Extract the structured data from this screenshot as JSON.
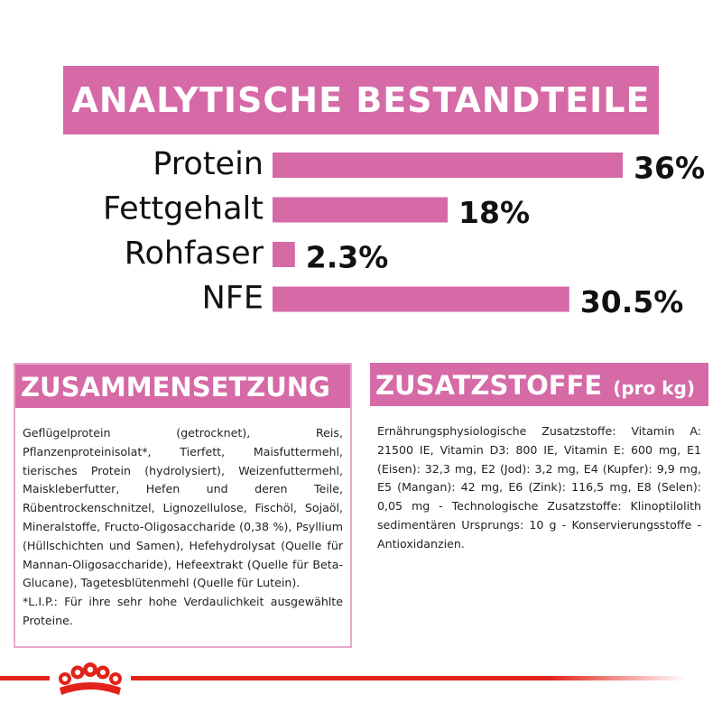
{
  "header": {
    "title": "ANALYTISCHE BESTANDTEILE"
  },
  "chart_data": {
    "type": "bar",
    "orientation": "horizontal",
    "color": "#d56aa7",
    "categories": [
      "Protein",
      "Fettgehalt",
      "Rohfaser",
      "NFE"
    ],
    "values": [
      36,
      18,
      2.3,
      30.5
    ],
    "value_labels": [
      "36%",
      "18%",
      "2.3%",
      "30.5%"
    ]
  },
  "composition": {
    "title": "ZUSAMMENSETZUNG",
    "text": "Geflügelprotein (getrocknet), Reis, Pflanzenproteinisolat*, Tierfett, Maisfuttermehl, tierisches Protein (hydrolysiert), Weizenfuttermehl, Maiskleberfutter, Hefen und deren Teile, Rübentrockenschnitzel, Lignozellulose, Fischöl, Sojaöl, Mineralstoffe, Fructo-Oligosaccharide (0,38 %), Psyllium (Hüllschichten und Samen), Hefehydrolysat (Quelle für Mannan-Oligosaccharide), Hefeextrakt (Quelle für Beta-Glucane), Tagetesblütenmehl (Quelle für Lutein).",
    "note": "*L.I.P.: Für ihre sehr hohe Verdaulichkeit ausgewählte Proteine."
  },
  "additives": {
    "title": "ZUSATZSTOFFE",
    "unit": "(pro kg)",
    "text": "Ernährungsphysiologische Zusatzstoffe: Vitamin A: 21500 IE, Vitamin D3: 800 IE, Vitamin E: 600 mg, E1 (Eisen): 32,3 mg, E2 (Jod): 3,2 mg, E4 (Kupfer): 9,9 mg, E5 (Mangan): 42 mg, E6 (Zink): 116,5 mg, E8 (Selen): 0,05 mg - Technologische Zusatzstoffe: Klinoptilolith sedimentären Ursprungs: 10 g - Konservierungsstoffe - Antioxidanzien."
  }
}
